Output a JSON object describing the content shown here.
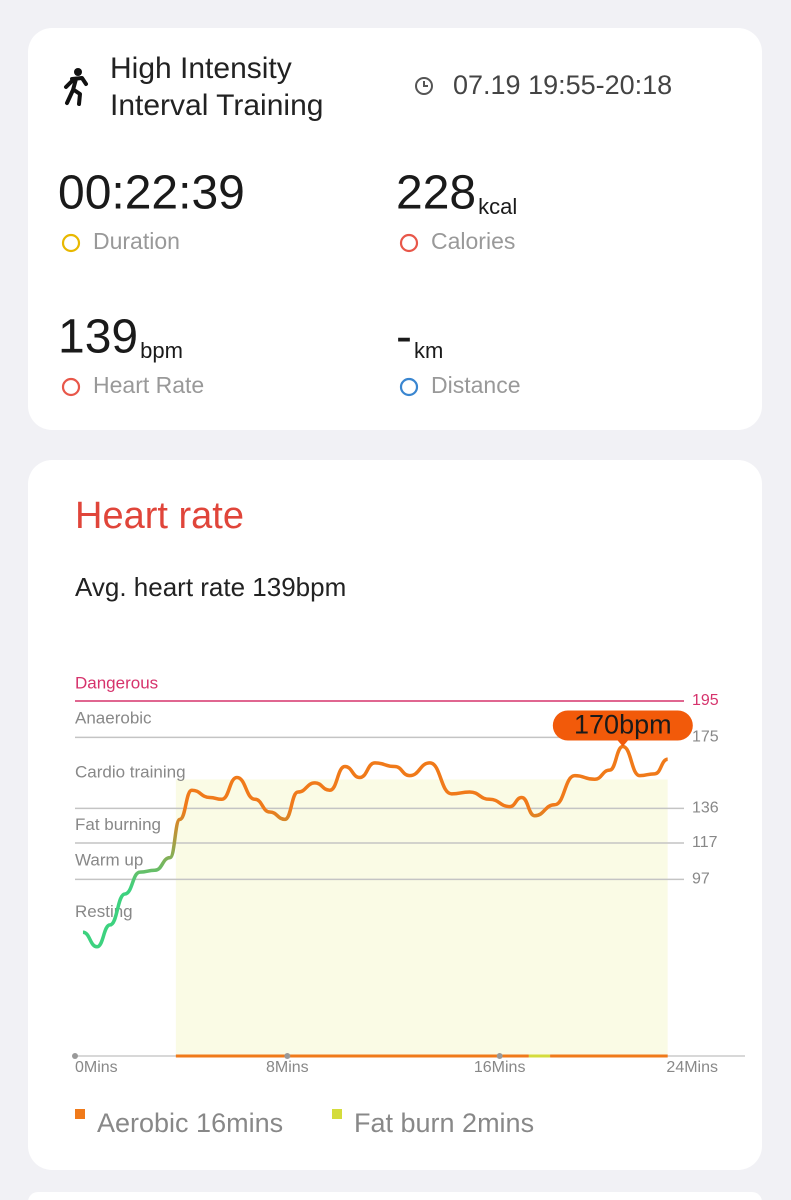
{
  "header": {
    "title_lines": [
      "High Intensity",
      "Interval Training"
    ],
    "time": "07.19 19:55-20:18"
  },
  "stats": [
    {
      "value": "00:22:39",
      "unit": null,
      "label": "Duration"
    },
    {
      "value": "228",
      "unit": "kcal",
      "label": "Calories"
    },
    {
      "value": "139",
      "unit": "bpm",
      "label": "Heart Rate"
    },
    {
      "value": "-",
      "unit": "km",
      "label": "Distance"
    }
  ],
  "chart_data": {
    "type": "line",
    "title": "Heart rate",
    "subtitle": "Avg. heart rate 139bpm",
    "x": [
      0.3,
      0.83,
      1.32,
      1.88,
      2.45,
      3.01,
      3.58,
      3.95,
      4.4,
      5.08,
      5.53,
      6.1,
      6.78,
      7.34,
      7.91,
      8.4,
      9.04,
      9.6,
      10.17,
      10.73,
      11.3,
      12.05,
      12.61,
      13.37,
      14.19,
      14.87,
      15.62,
      16.38,
      16.83,
      17.32,
      18.07,
      18.83,
      19.58,
      20.14,
      20.64,
      21.28,
      21.84,
      22.33
    ],
    "values": [
      68,
      60,
      72,
      89,
      101,
      102,
      109,
      130,
      146,
      142,
      141,
      153,
      141,
      134,
      130,
      145,
      150,
      146,
      159,
      153,
      161,
      159,
      154,
      161,
      144,
      145,
      141,
      137,
      142,
      132,
      138,
      154,
      152,
      157,
      170,
      154,
      155,
      163
    ],
    "line_colors": [
      "#3dd27f",
      "#f07a1a"
    ],
    "xlim": [
      0,
      24
    ],
    "xticks": [
      {
        "value": 0,
        "label": "0Mins"
      },
      {
        "value": 8,
        "label": "8Mins"
      },
      {
        "value": 16,
        "label": "16Mins"
      },
      {
        "value": 24,
        "label": "24Mins"
      }
    ],
    "ylim": [
      0,
      195
    ],
    "yticks": [
      97,
      117,
      136,
      175,
      195
    ],
    "zone_labels": [
      "Warm up",
      "Fat burning",
      "Cardio training",
      "Anaerobic",
      "Dangerous"
    ],
    "bottom_zone_label": "Resting",
    "danger_color": "#d6336c",
    "annotation": "170bpm",
    "annotation_color": "#f25a0a",
    "shade_color": "#fafbe5",
    "legend": [
      {
        "name": "Aerobic 16mins",
        "color": "#f07a1a"
      },
      {
        "name": "Fat burn 2mins",
        "color": "#d4dc3c"
      }
    ],
    "segments": [
      {
        "start": 3.8,
        "end": 17.1,
        "series": 0
      },
      {
        "start": 17.1,
        "end": 17.9,
        "series": 1
      },
      {
        "start": 17.9,
        "end": 22.33,
        "series": 0
      }
    ]
  }
}
